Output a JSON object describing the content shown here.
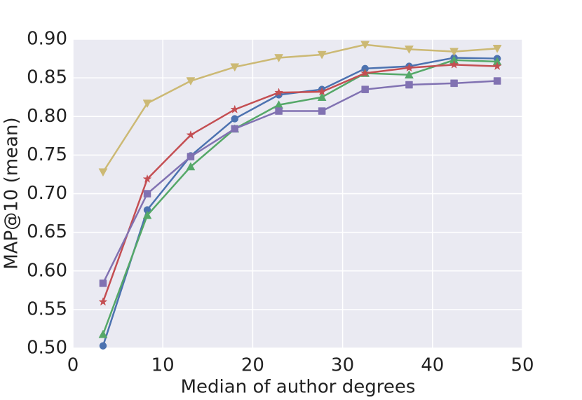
{
  "chart_data": {
    "type": "line",
    "xlabel": "Median of author degrees",
    "ylabel": "MAP@10 (mean)",
    "x": [
      3.35,
      8.27,
      13.1,
      18.0,
      22.9,
      27.7,
      32.5,
      37.4,
      42.4,
      47.2
    ],
    "series": [
      {
        "color": "#4c72b0",
        "marker": "circle",
        "values": [
          0.503,
          0.679,
          0.749,
          0.797,
          0.828,
          0.835,
          0.862,
          0.865,
          0.876,
          0.875
        ]
      },
      {
        "color": "#55a868",
        "marker": "triangle-up",
        "values": [
          0.518,
          0.672,
          0.735,
          0.784,
          0.815,
          0.825,
          0.856,
          0.854,
          0.873,
          0.871
        ]
      },
      {
        "color": "#c44e52",
        "marker": "star",
        "values": [
          0.56,
          0.719,
          0.776,
          0.809,
          0.831,
          0.832,
          0.856,
          0.863,
          0.867,
          0.865
        ]
      },
      {
        "color": "#8172b2",
        "marker": "square",
        "values": [
          0.584,
          0.7,
          0.748,
          0.784,
          0.807,
          0.807,
          0.835,
          0.841,
          0.843,
          0.846
        ]
      },
      {
        "color": "#ccb974",
        "marker": "triangle-down",
        "values": [
          0.728,
          0.817,
          0.846,
          0.864,
          0.876,
          0.88,
          0.893,
          0.887,
          0.884,
          0.888
        ]
      }
    ],
    "xlim": [
      0,
      50
    ],
    "xticks": [
      0,
      10,
      20,
      30,
      40,
      50
    ],
    "ylim": [
      0.5,
      0.9
    ],
    "yticks": [
      {
        "value": 0.5,
        "label": "0.50"
      },
      {
        "value": 0.55,
        "label": "0.55"
      },
      {
        "value": 0.6,
        "label": "0.60"
      },
      {
        "value": 0.65,
        "label": "0.65"
      },
      {
        "value": 0.7,
        "label": "0.70"
      },
      {
        "value": 0.75,
        "label": "0.75"
      },
      {
        "value": 0.8,
        "label": "0.80"
      },
      {
        "value": 0.85,
        "label": "0.85"
      },
      {
        "value": 0.9,
        "label": "0.90"
      }
    ],
    "grid": true
  }
}
